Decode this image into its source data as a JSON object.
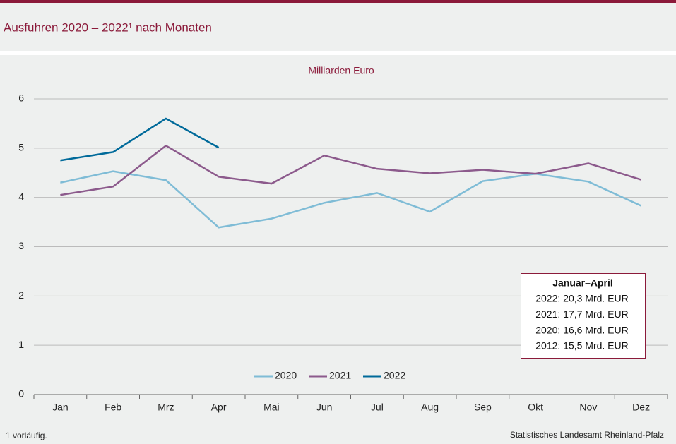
{
  "chart_data": {
    "type": "line",
    "title": "Ausfuhren 2020 – 2022¹ nach Monaten",
    "subtitle": "Milliarden Euro",
    "categories": [
      "Jan",
      "Feb",
      "Mrz",
      "Apr",
      "Mai",
      "Jun",
      "Jul",
      "Aug",
      "Sep",
      "Okt",
      "Nov",
      "Dez"
    ],
    "series": [
      {
        "name": "2020",
        "color": "#7fbcd6",
        "values": [
          4.3,
          4.53,
          4.35,
          3.39,
          3.57,
          3.89,
          4.09,
          3.71,
          4.33,
          4.48,
          4.32,
          3.83
        ]
      },
      {
        "name": "2021",
        "color": "#8c5a8c",
        "values": [
          4.05,
          4.22,
          5.05,
          4.42,
          4.28,
          4.85,
          4.58,
          4.49,
          4.56,
          4.48,
          4.69,
          4.36
        ]
      },
      {
        "name": "2022",
        "color": "#006a9a",
        "values": [
          4.75,
          4.92,
          5.6,
          5.01,
          null,
          null,
          null,
          null,
          null,
          null,
          null,
          null
        ]
      }
    ],
    "ylim": [
      0,
      6
    ],
    "yticks": [
      0,
      1,
      2,
      3,
      4,
      5,
      6
    ],
    "grid": true,
    "legend": "bottom",
    "info_box": {
      "title": "Januar–April",
      "lines": [
        "2022: 20,3 Mrd. EUR",
        "2021: 17,7 Mrd. EUR",
        "2020: 16,6 Mrd. EUR",
        "2012: 15,5 Mrd. EUR"
      ]
    },
    "footnote": "1 vorläufig.",
    "source": "Statistisches Landesamt Rheinland-Pfalz"
  }
}
